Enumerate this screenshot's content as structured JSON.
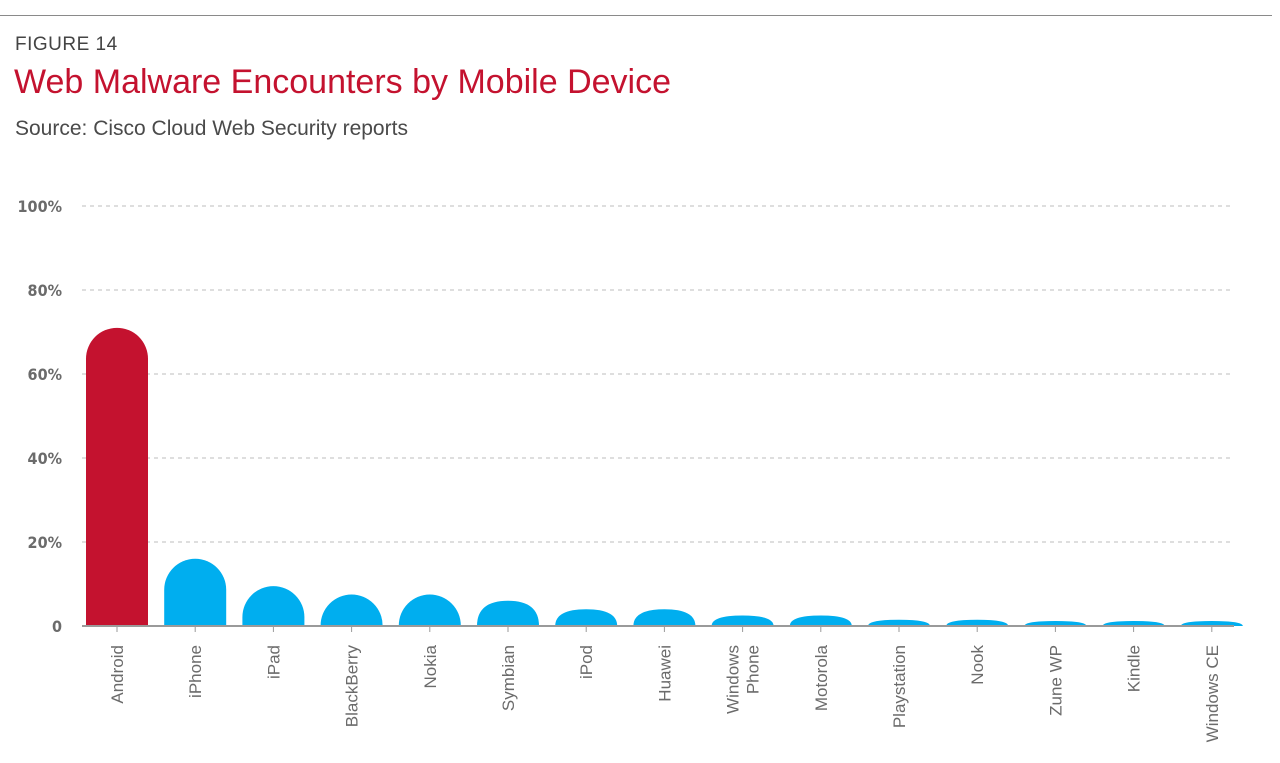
{
  "figure_label": "FIGURE 14",
  "title": "Web Malware Encounters by Mobile Device",
  "subtitle": "Source: Cisco Cloud Web Security reports",
  "colors": {
    "highlight": "#c4122f",
    "bar": "#00aeef",
    "grid": "#bdbdbd",
    "axis": "#9a9a9a",
    "title": "#c4122f",
    "text": "#6b6b6b"
  },
  "chart_data": {
    "type": "bar",
    "title": "Web Malware Encounters by Mobile Device",
    "subtitle": "Source: Cisco Cloud Web Security reports",
    "xlabel": "",
    "ylabel": "",
    "ylim": [
      0,
      100
    ],
    "y_ticks": [
      0,
      20,
      40,
      60,
      80,
      100
    ],
    "y_tick_labels": [
      "0",
      "20%",
      "40%",
      "60%",
      "80%",
      "100%"
    ],
    "grid": true,
    "legend": "none",
    "highlight_index": 0,
    "categories": [
      "Android",
      "iPhone",
      "iPad",
      "BlackBerry",
      "Nokia",
      "Symbian",
      "iPod",
      "Huawei",
      "Windows Phone",
      "Motorola",
      "Playstation",
      "Nook",
      "Zune WP",
      "Kindle",
      "Windows CE"
    ],
    "category_label_lines": [
      [
        "Android"
      ],
      [
        "iPhone"
      ],
      [
        "iPad"
      ],
      [
        "BlackBerry"
      ],
      [
        "Nokia"
      ],
      [
        "Symbian"
      ],
      [
        "iPod"
      ],
      [
        "Huawei"
      ],
      [
        "Windows",
        "Phone"
      ],
      [
        "Motorola"
      ],
      [
        "Playstation"
      ],
      [
        "Nook"
      ],
      [
        "Zune WP"
      ],
      [
        "Kindle"
      ],
      [
        "Windows CE"
      ]
    ],
    "values": [
      71,
      16,
      9.5,
      7.5,
      7.5,
      6,
      4,
      4,
      2.5,
      2.5,
      1.5,
      1.5,
      1.2,
      1.2,
      1.2
    ]
  }
}
